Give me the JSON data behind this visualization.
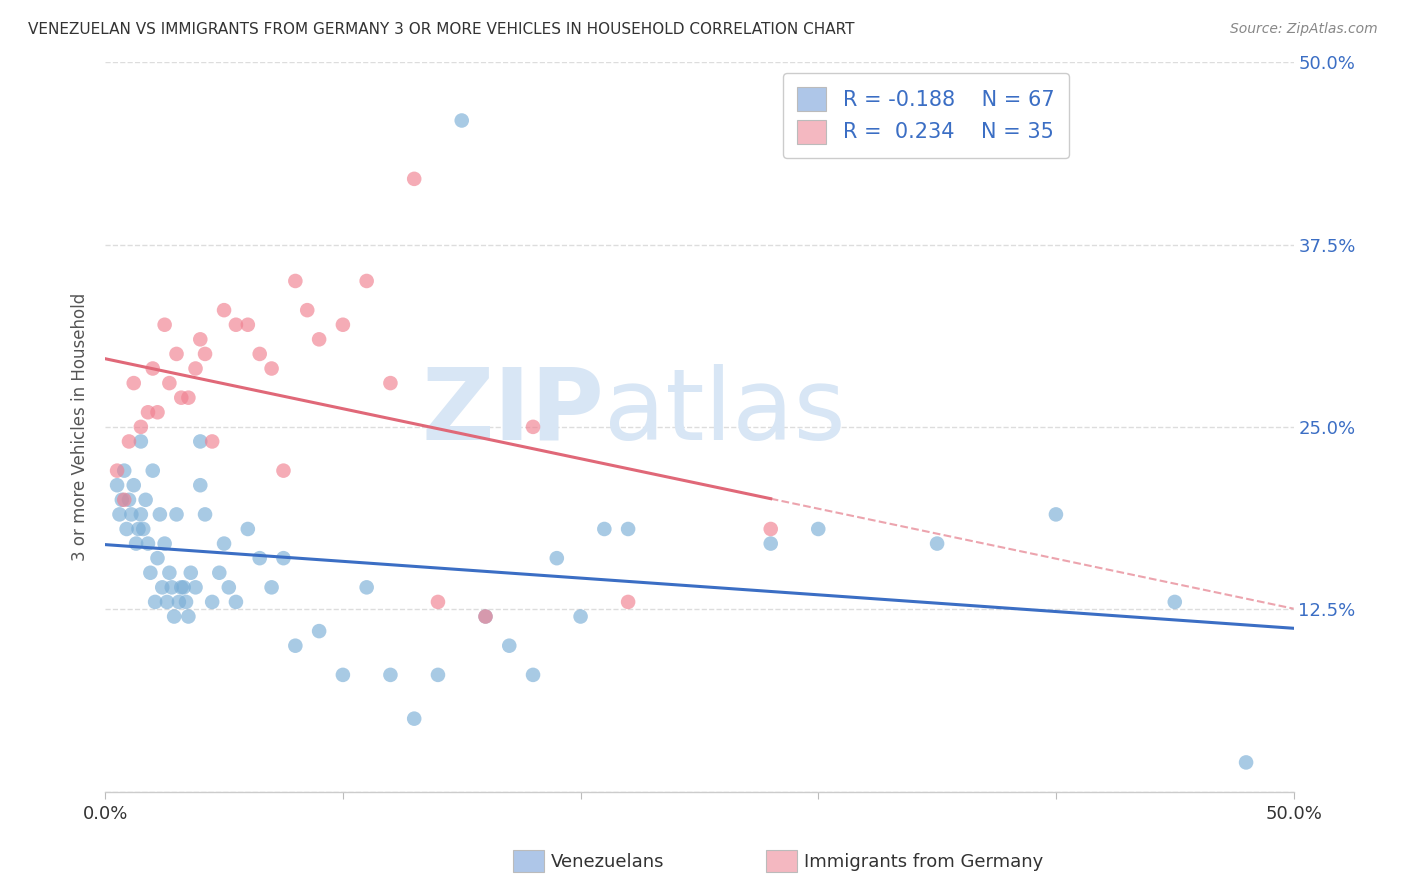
{
  "title": "VENEZUELAN VS IMMIGRANTS FROM GERMANY 3 OR MORE VEHICLES IN HOUSEHOLD CORRELATION CHART",
  "source": "Source: ZipAtlas.com",
  "ylabel": "3 or more Vehicles in Household",
  "ytick_labels": [
    "",
    "12.5%",
    "25.0%",
    "37.5%",
    "50.0%"
  ],
  "ytick_values": [
    0,
    0.125,
    0.25,
    0.375,
    0.5
  ],
  "xlim": [
    0.0,
    0.5
  ],
  "ylim": [
    0.0,
    0.5
  ],
  "legend_label1": "R = -0.188   N = 67",
  "legend_label2": "R =  0.234   N = 35",
  "legend_color1": "#aec6e8",
  "legend_color2": "#f4b8c1",
  "scatter_color1": "#7aaed6",
  "scatter_color2": "#f08090",
  "trendline_color1": "#3b6ec4",
  "trendline_color2": "#e06878",
  "watermark_zip": "ZIP",
  "watermark_atlas": "atlas",
  "watermark_color": "#d8e6f5",
  "background_color": "#ffffff",
  "grid_color": "#dddddd",
  "text_color_blue": "#3b6ec4",
  "R1": -0.188,
  "N1": 67,
  "R2": 0.234,
  "N2": 35,
  "venezuelan_x": [
    0.005,
    0.006,
    0.007,
    0.008,
    0.009,
    0.01,
    0.011,
    0.012,
    0.013,
    0.014,
    0.015,
    0.015,
    0.016,
    0.017,
    0.018,
    0.019,
    0.02,
    0.021,
    0.022,
    0.023,
    0.024,
    0.025,
    0.026,
    0.027,
    0.028,
    0.029,
    0.03,
    0.031,
    0.032,
    0.033,
    0.034,
    0.035,
    0.036,
    0.038,
    0.04,
    0.04,
    0.042,
    0.045,
    0.048,
    0.05,
    0.052,
    0.055,
    0.06,
    0.065,
    0.07,
    0.075,
    0.08,
    0.09,
    0.1,
    0.11,
    0.12,
    0.13,
    0.14,
    0.15,
    0.16,
    0.17,
    0.18,
    0.19,
    0.2,
    0.21,
    0.22,
    0.28,
    0.3,
    0.35,
    0.4,
    0.45,
    0.48
  ],
  "venezuelan_y": [
    0.21,
    0.19,
    0.2,
    0.22,
    0.18,
    0.2,
    0.19,
    0.21,
    0.17,
    0.18,
    0.19,
    0.24,
    0.18,
    0.2,
    0.17,
    0.15,
    0.22,
    0.13,
    0.16,
    0.19,
    0.14,
    0.17,
    0.13,
    0.15,
    0.14,
    0.12,
    0.19,
    0.13,
    0.14,
    0.14,
    0.13,
    0.12,
    0.15,
    0.14,
    0.24,
    0.21,
    0.19,
    0.13,
    0.15,
    0.17,
    0.14,
    0.13,
    0.18,
    0.16,
    0.14,
    0.16,
    0.1,
    0.11,
    0.08,
    0.14,
    0.08,
    0.05,
    0.08,
    0.46,
    0.12,
    0.1,
    0.08,
    0.16,
    0.12,
    0.18,
    0.18,
    0.17,
    0.18,
    0.17,
    0.19,
    0.13,
    0.02
  ],
  "germany_x": [
    0.005,
    0.008,
    0.01,
    0.012,
    0.015,
    0.018,
    0.02,
    0.022,
    0.025,
    0.027,
    0.03,
    0.032,
    0.035,
    0.038,
    0.04,
    0.042,
    0.045,
    0.05,
    0.055,
    0.06,
    0.065,
    0.07,
    0.075,
    0.08,
    0.085,
    0.09,
    0.1,
    0.11,
    0.12,
    0.13,
    0.14,
    0.16,
    0.18,
    0.22,
    0.28
  ],
  "germany_y": [
    0.22,
    0.2,
    0.24,
    0.28,
    0.25,
    0.26,
    0.29,
    0.26,
    0.32,
    0.28,
    0.3,
    0.27,
    0.27,
    0.29,
    0.31,
    0.3,
    0.24,
    0.33,
    0.32,
    0.32,
    0.3,
    0.29,
    0.22,
    0.35,
    0.33,
    0.31,
    0.32,
    0.35,
    0.28,
    0.42,
    0.13,
    0.12,
    0.25,
    0.13,
    0.18
  ]
}
